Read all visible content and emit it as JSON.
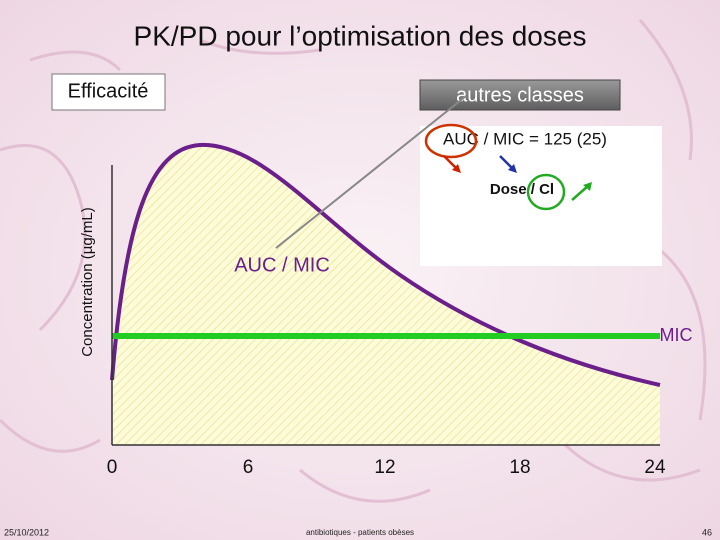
{
  "header": {
    "title": "PK/PD pour l’optimisation des doses"
  },
  "boxes": {
    "efficacy": "Efficacité",
    "other_classes": "autres classes"
  },
  "inset": {
    "formula": "AUC / MIC = 125 (25)",
    "dose": "Dose / Cl"
  },
  "chart": {
    "y_label": "Concentration (µg/mL)",
    "area_label": "AUC / MIC",
    "line_label": "MIC",
    "x_ticks": [
      "0",
      "6",
      "12",
      "18",
      "24"
    ]
  },
  "footer": {
    "date": "25/10/2012",
    "subject": "antibiotiques - patients obèses",
    "page": "46"
  }
}
